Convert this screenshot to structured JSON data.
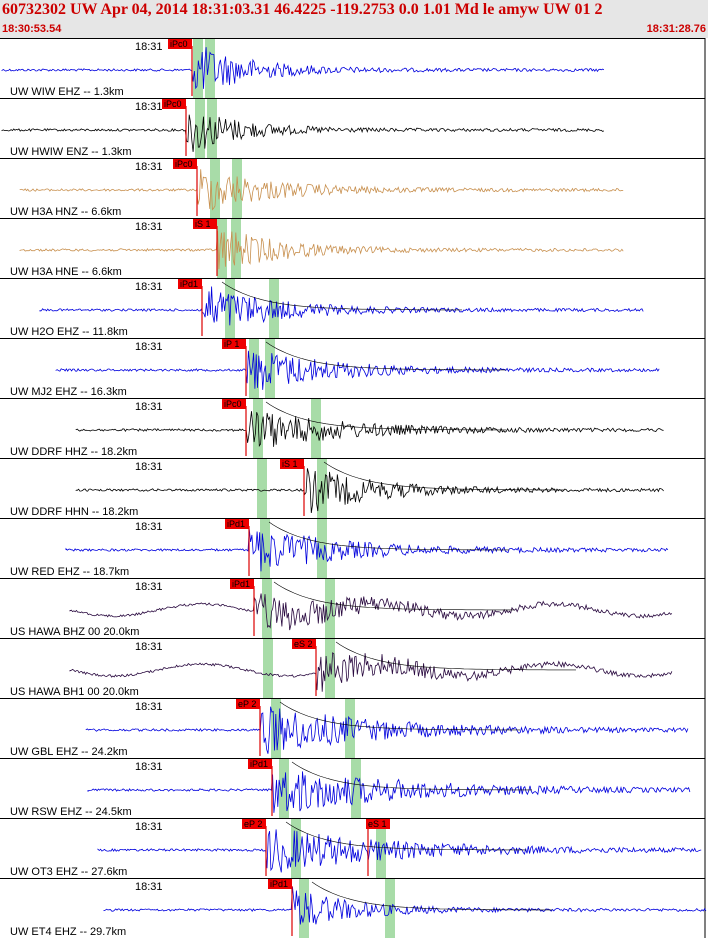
{
  "header": {
    "title": "60732302 UW Apr 04, 2014 18:31:03.31   46.4225 -119.2753  0.0 1.01 Md le amyw UW 01   2",
    "start_time": "18:30:53.54",
    "end_time": "18:31:28.76"
  },
  "colors": {
    "pick_box": "#ee0000",
    "green_band": "#a8dca8",
    "blue": "#0000dd",
    "black": "#000000",
    "tan": "#c8904f",
    "purple": "#2a0a40",
    "red": "#dd0000"
  },
  "time_tick": "18:31",
  "traces": [
    {
      "label": "UW WIW EHZ -- 1.3km",
      "color": "blue",
      "pick": "iPc0",
      "amp": 28,
      "decay": 55
    },
    {
      "label": "UW HWIW ENZ -- 1.3km",
      "color": "black",
      "pick": "iPc0",
      "amp": 26,
      "decay": 50
    },
    {
      "label": "UW H3A HNZ -- 6.6km",
      "color": "tan",
      "pick": "iPc0",
      "amp": 24,
      "decay": 70
    },
    {
      "label": "UW H3A HNE -- 6.6km",
      "color": "tan",
      "pick": "iS 1",
      "amp": 24,
      "decay": 60
    },
    {
      "label": "UW H2O EHZ -- 11.8km",
      "color": "blue",
      "pick": "iPd1",
      "amp": 26,
      "decay": 70
    },
    {
      "label": "UW MJ2 EHZ -- 16.3km",
      "color": "blue",
      "pick": "iP 1",
      "amp": 24,
      "decay": 80
    },
    {
      "label": "UW DDRF HHZ -- 18.2km",
      "color": "black",
      "pick": "iPc0",
      "amp": 22,
      "decay": 90
    },
    {
      "label": "UW DDRF HHN -- 18.2km",
      "color": "black",
      "pick": "iS 1",
      "amp": 24,
      "decay": 70
    },
    {
      "label": "UW RED EHZ -- 18.7km",
      "color": "blue",
      "pick": "iPd1",
      "amp": 24,
      "decay": 90
    },
    {
      "label": "US HAWA BHZ 00 20.0km",
      "color": "purple",
      "pick": "iPd1",
      "amp": 20,
      "decay": 110
    },
    {
      "label": "US HAWA BH1 00 20.0km",
      "color": "purple",
      "pick": "eS 2",
      "amp": 20,
      "decay": 90
    },
    {
      "label": "UW GBL EHZ -- 24.2km",
      "color": "blue",
      "pick": "eP 2",
      "amp": 26,
      "decay": 110
    },
    {
      "label": "UW RSW EHZ -- 24.5km",
      "color": "blue",
      "pick": "iPd1",
      "amp": 26,
      "decay": 120
    },
    {
      "label": "UW OT3 EHZ -- 27.6km",
      "color": "blue",
      "pick": "eP 2",
      "pick2": "eS 1",
      "amp": 24,
      "decay": 120
    },
    {
      "label": "UW ET4 EHZ -- 29.7km",
      "color": "blue",
      "pick": "iPd1",
      "amp": 22,
      "decay": 60
    }
  ]
}
